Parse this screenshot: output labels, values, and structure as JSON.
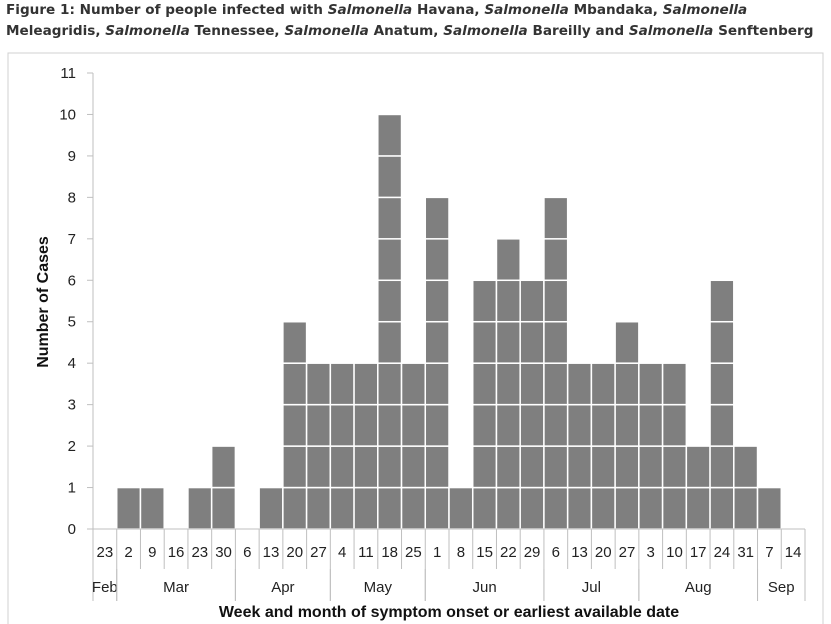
{
  "title_parts": [
    {
      "text": "Figure 1: Number of people infected with ",
      "italic": false
    },
    {
      "text": "Salmonella",
      "italic": true
    },
    {
      "text": " Havana, ",
      "italic": false
    },
    {
      "text": "Salmonella",
      "italic": true
    },
    {
      "text": " Mbandaka, ",
      "italic": false
    },
    {
      "text": "Salmonella",
      "italic": true
    },
    {
      "text": " Meleagridis, ",
      "italic": false
    },
    {
      "text": "Salmonella",
      "italic": true
    },
    {
      "text": " Tennessee, ",
      "italic": false
    },
    {
      "text": "Salmonella",
      "italic": true
    },
    {
      "text": " Anatum, ",
      "italic": false
    },
    {
      "text": "Salmonella",
      "italic": true
    },
    {
      "text": " Bareilly and ",
      "italic": false
    },
    {
      "text": "Salmonella",
      "italic": true
    },
    {
      "text": " Senftenberg",
      "italic": false
    }
  ],
  "chart_data": {
    "type": "bar",
    "title": "Figure 1: Number of people infected with Salmonella Havana, Salmonella Mbandaka, Salmonella Meleagridis, Salmonella Tennessee, Salmonella Anatum, Salmonella Bareilly and Salmonella Senftenberg",
    "xlabel": "Week and month of symptom onset or earliest available date",
    "ylabel": "Number of Cases",
    "ylim": [
      0,
      11
    ],
    "yticks": [
      0,
      1,
      2,
      3,
      4,
      5,
      6,
      7,
      8,
      9,
      10,
      11
    ],
    "categories": [
      "23",
      "2",
      "9",
      "16",
      "23",
      "30",
      "6",
      "13",
      "20",
      "27",
      "4",
      "11",
      "18",
      "25",
      "1",
      "8",
      "15",
      "22",
      "29",
      "6",
      "13",
      "20",
      "27",
      "3",
      "10",
      "17",
      "24",
      "31",
      "7",
      "14"
    ],
    "values": [
      0,
      1,
      1,
      0,
      1,
      2,
      0,
      1,
      5,
      4,
      4,
      4,
      10,
      4,
      8,
      1,
      6,
      7,
      6,
      8,
      4,
      4,
      5,
      4,
      4,
      2,
      6,
      2,
      1,
      0
    ],
    "months": [
      {
        "label": "Feb",
        "start": 0,
        "count": 1
      },
      {
        "label": "Mar",
        "start": 1,
        "count": 5
      },
      {
        "label": "Apr",
        "start": 6,
        "count": 4
      },
      {
        "label": "May",
        "start": 10,
        "count": 4
      },
      {
        "label": "Jun",
        "start": 14,
        "count": 5
      },
      {
        "label": "Jul",
        "start": 19,
        "count": 4
      },
      {
        "label": "Aug",
        "start": 23,
        "count": 5
      },
      {
        "label": "Sep",
        "start": 28,
        "count": 2
      }
    ],
    "bar_color": "#7f7f7f",
    "case_separator_color": "#ffffff",
    "grid": false,
    "legend": "none"
  }
}
